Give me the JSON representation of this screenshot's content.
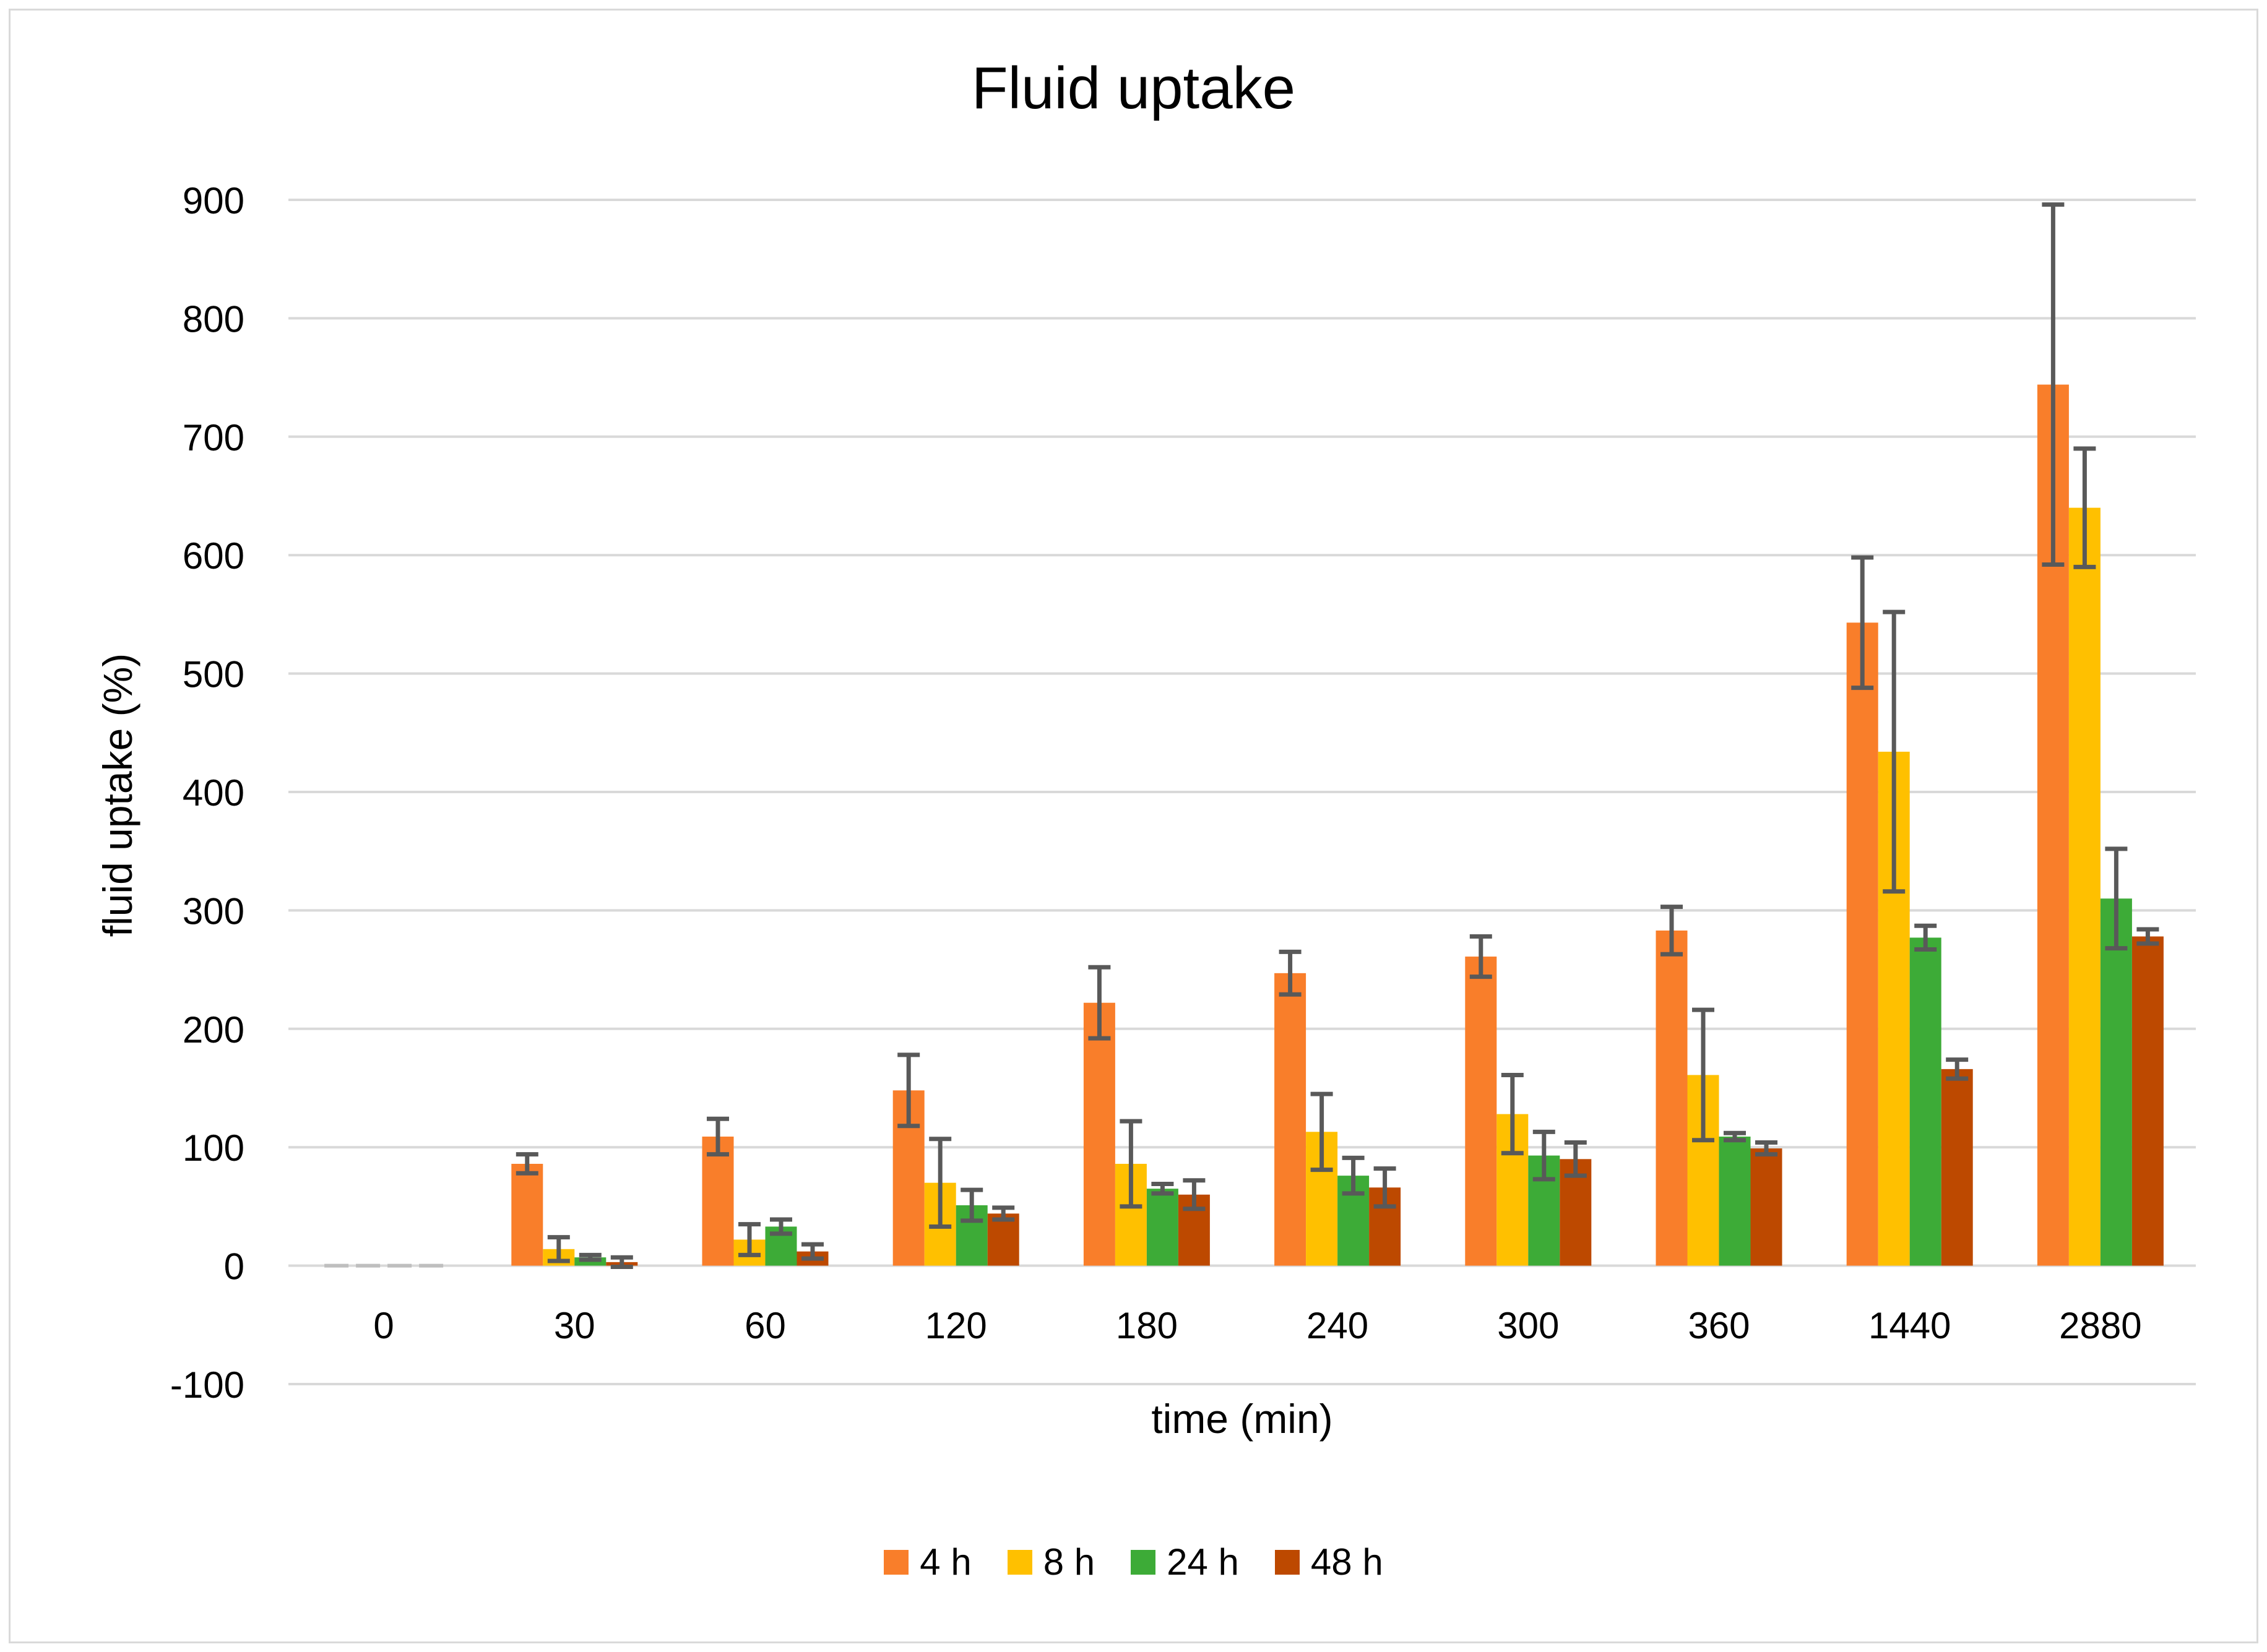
{
  "chart_data": {
    "type": "bar",
    "title": "Fluid uptake",
    "xlabel": "time (min)",
    "ylabel": "fluid uptake (%)",
    "ylim": [
      -100,
      900
    ],
    "yticks": [
      -100,
      0,
      100,
      200,
      300,
      400,
      500,
      600,
      700,
      800,
      900
    ],
    "grid": true,
    "legend_position": "bottom",
    "categories": [
      "0",
      "30",
      "60",
      "120",
      "180",
      "240",
      "300",
      "360",
      "1440",
      "2880"
    ],
    "series": [
      {
        "name": "4 h",
        "color": "#f97e2a",
        "values": [
          0,
          86,
          109,
          148,
          222,
          247,
          261,
          283,
          543,
          744
        ],
        "errors": [
          0,
          8,
          15,
          30,
          30,
          18,
          17,
          20,
          55,
          152
        ]
      },
      {
        "name": "8 h",
        "color": "#ffc000",
        "values": [
          0,
          14,
          22,
          70,
          86,
          113,
          128,
          161,
          434,
          640
        ],
        "errors": [
          0,
          10,
          13,
          37,
          36,
          32,
          33,
          55,
          118,
          50
        ]
      },
      {
        "name": "24 h",
        "color": "#3dab37",
        "values": [
          0,
          7,
          33,
          51,
          65,
          76,
          93,
          109,
          277,
          310
        ],
        "errors": [
          0,
          2,
          6,
          13,
          4,
          15,
          20,
          3,
          10,
          42
        ]
      },
      {
        "name": "48 h",
        "color": "#bd4900",
        "values": [
          0,
          3,
          12,
          44,
          60,
          66,
          90,
          99,
          166,
          278
        ],
        "errors": [
          0,
          4,
          6,
          5,
          12,
          16,
          14,
          5,
          8,
          6
        ]
      }
    ]
  }
}
